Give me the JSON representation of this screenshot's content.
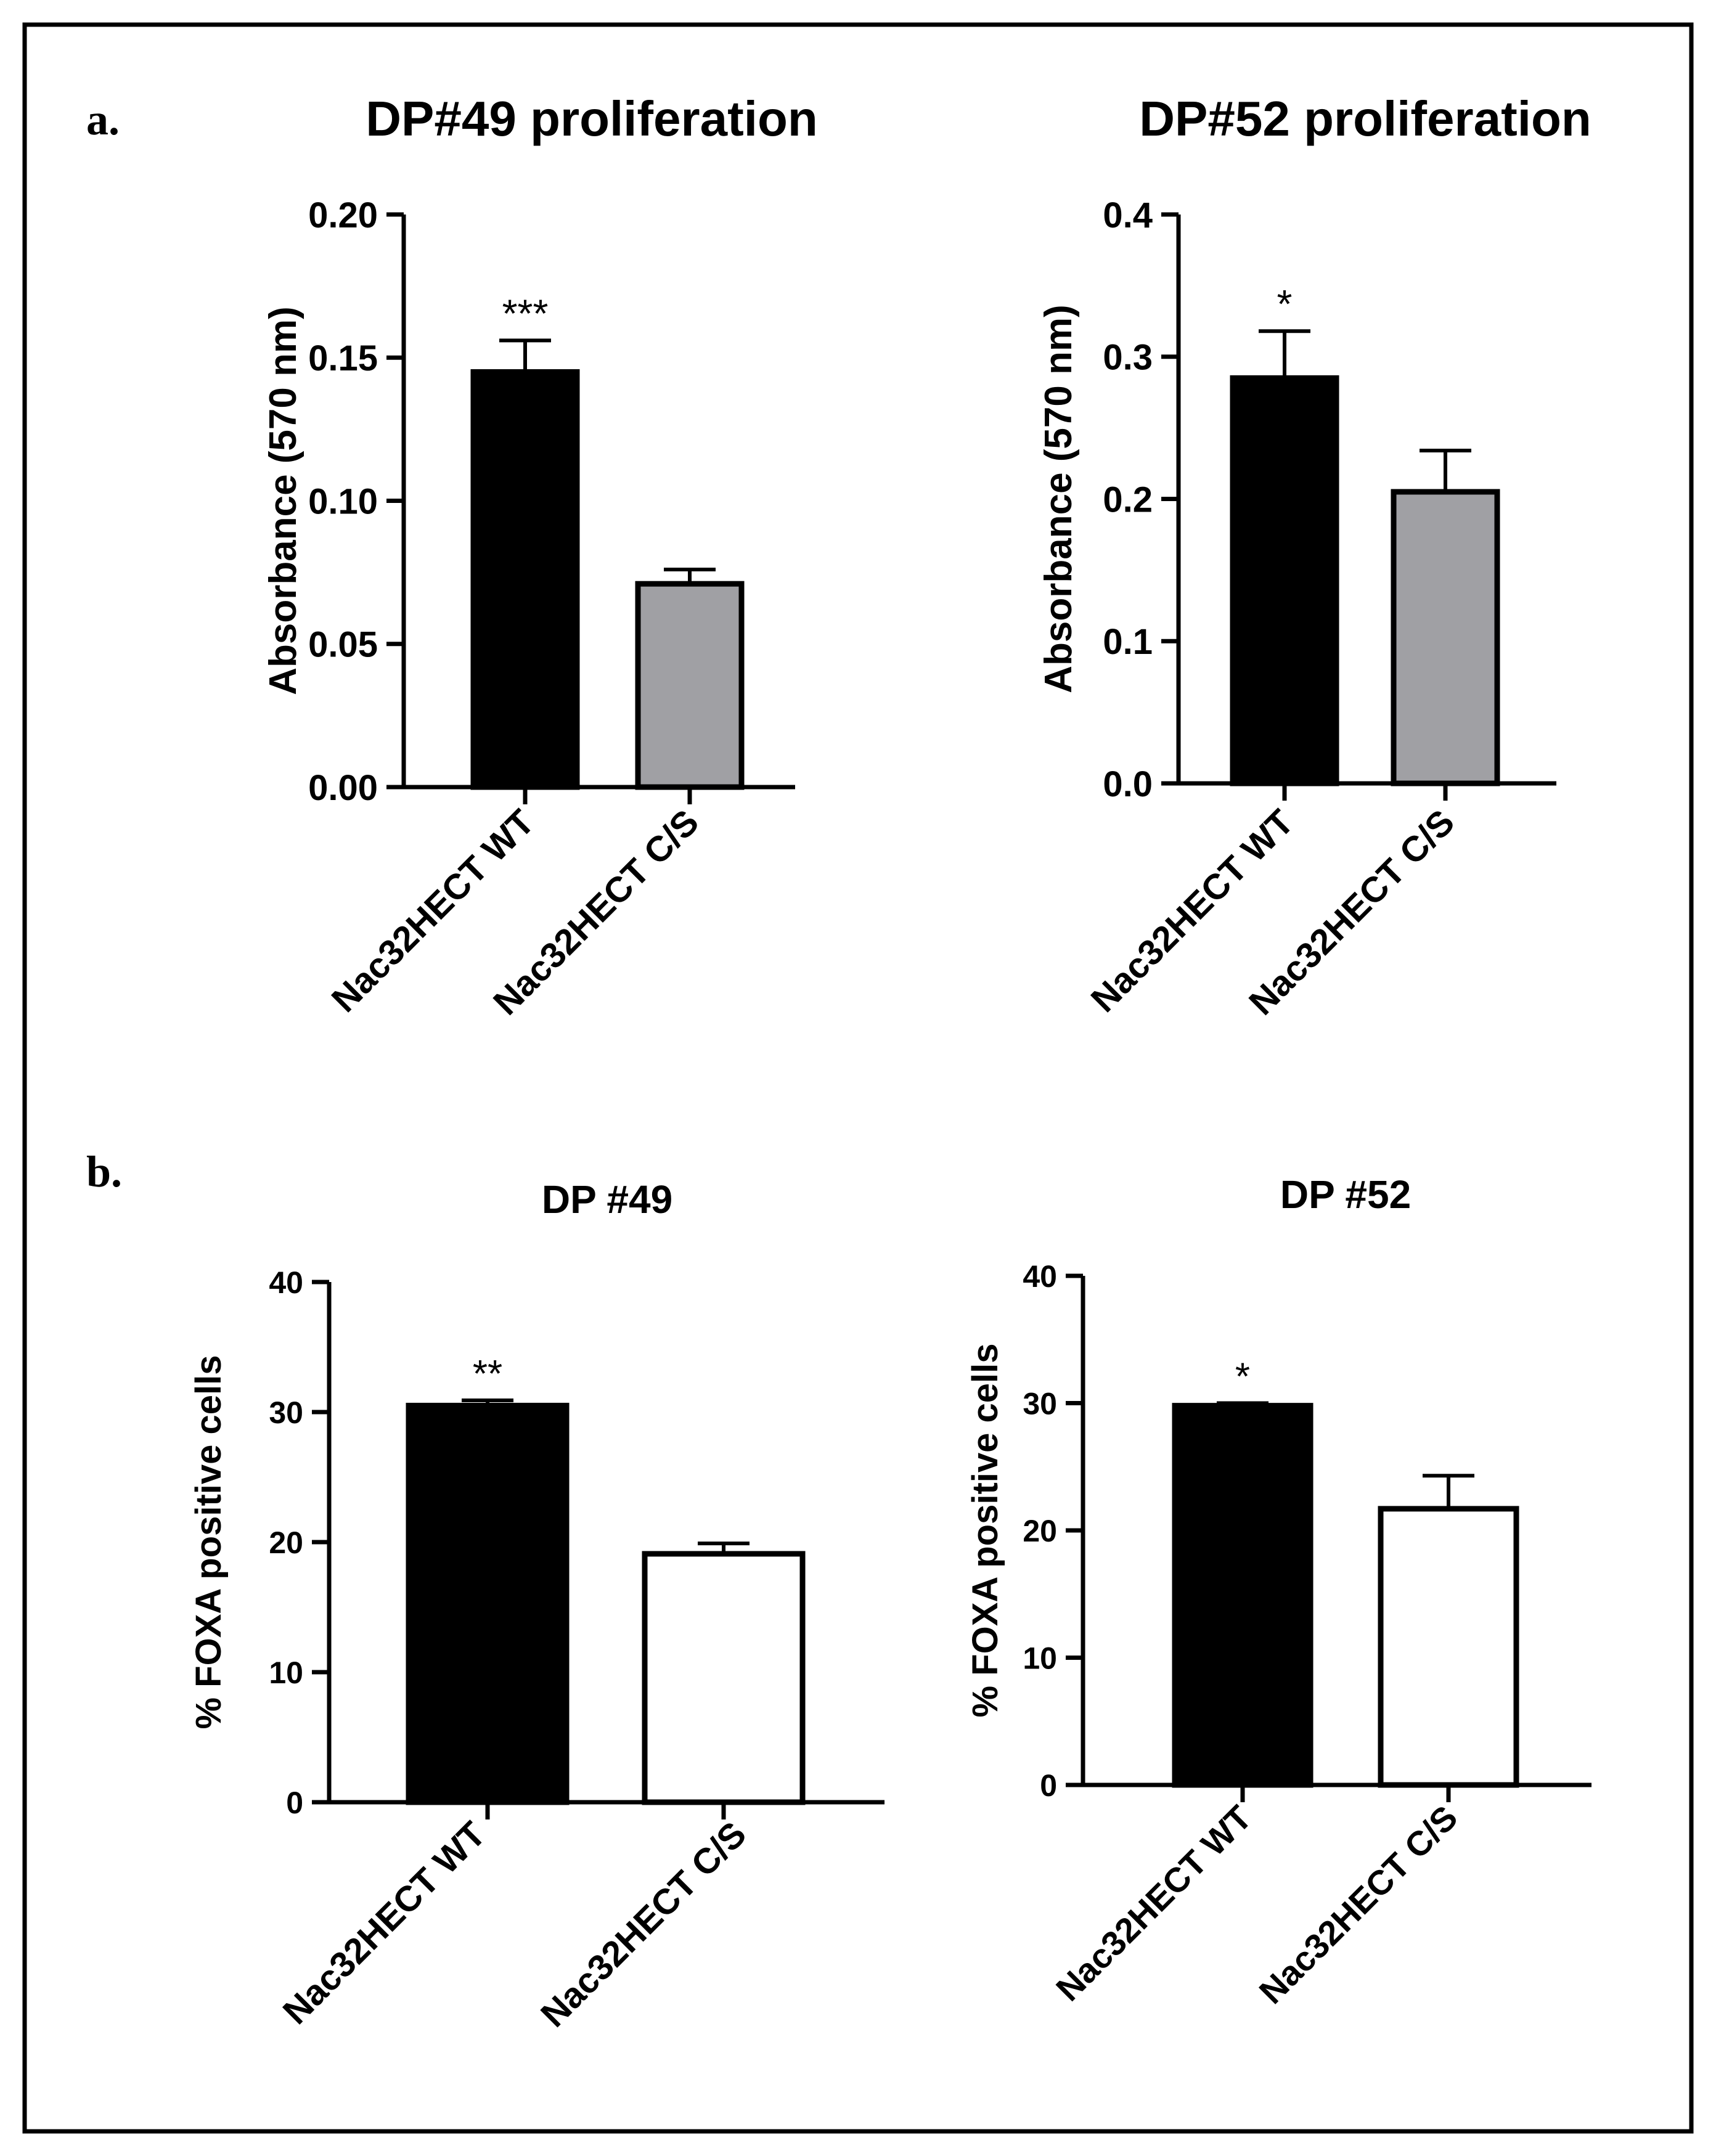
{
  "panels": [
    {
      "letter": "a."
    },
    {
      "letter": "b."
    }
  ],
  "chart_data": [
    {
      "type": "bar",
      "title": "DP#49 proliferation",
      "xlabel": "",
      "ylabel": "Absorbance (570 nm)",
      "ylim": [
        0,
        0.2
      ],
      "yticks": [
        "0.00",
        "0.05",
        "0.10",
        "0.15",
        "0.20"
      ],
      "categories": [
        "Nac32HECT WT",
        "Nac32HECT C/S"
      ],
      "values": [
        0.145,
        0.071
      ],
      "errors": [
        0.011,
        0.005
      ],
      "bar_colors": [
        "#000000",
        "#a0a0a4"
      ],
      "significance": [
        "***",
        ""
      ]
    },
    {
      "type": "bar",
      "title": "DP#52 proliferation",
      "xlabel": "",
      "ylabel": "Absorbance (570 nm)",
      "ylim": [
        0,
        0.4
      ],
      "yticks": [
        "0.0",
        "0.1",
        "0.2",
        "0.3",
        "0.4"
      ],
      "categories": [
        "Nac32HECT WT",
        "Nac32HECT C/S"
      ],
      "values": [
        0.285,
        0.205
      ],
      "errors": [
        0.033,
        0.029
      ],
      "bar_colors": [
        "#000000",
        "#a0a0a4"
      ],
      "significance": [
        "*",
        ""
      ]
    },
    {
      "type": "bar",
      "title": "DP #49",
      "xlabel": "",
      "ylabel": "% FOXA positive cells",
      "ylim": [
        0,
        40
      ],
      "yticks": [
        "0",
        "10",
        "20",
        "30",
        "40"
      ],
      "categories": [
        "Nac32HECT WT",
        "Nac32HECT C/S"
      ],
      "values": [
        30.5,
        19.1
      ],
      "errors": [
        0.4,
        0.8
      ],
      "bar_colors": [
        "#000000",
        "#ffffff"
      ],
      "significance": [
        "**",
        ""
      ]
    },
    {
      "type": "bar",
      "title": "DP #52",
      "xlabel": "",
      "ylabel": "% FOXA positive cells",
      "ylim": [
        0,
        40
      ],
      "yticks": [
        "0",
        "10",
        "20",
        "30",
        "40"
      ],
      "categories": [
        "Nac32HECT WT",
        "Nac32HECT C/S"
      ],
      "values": [
        29.8,
        21.7
      ],
      "errors": [
        0.2,
        2.6
      ],
      "bar_colors": [
        "#000000",
        "#ffffff"
      ],
      "significance": [
        "*",
        ""
      ]
    }
  ]
}
